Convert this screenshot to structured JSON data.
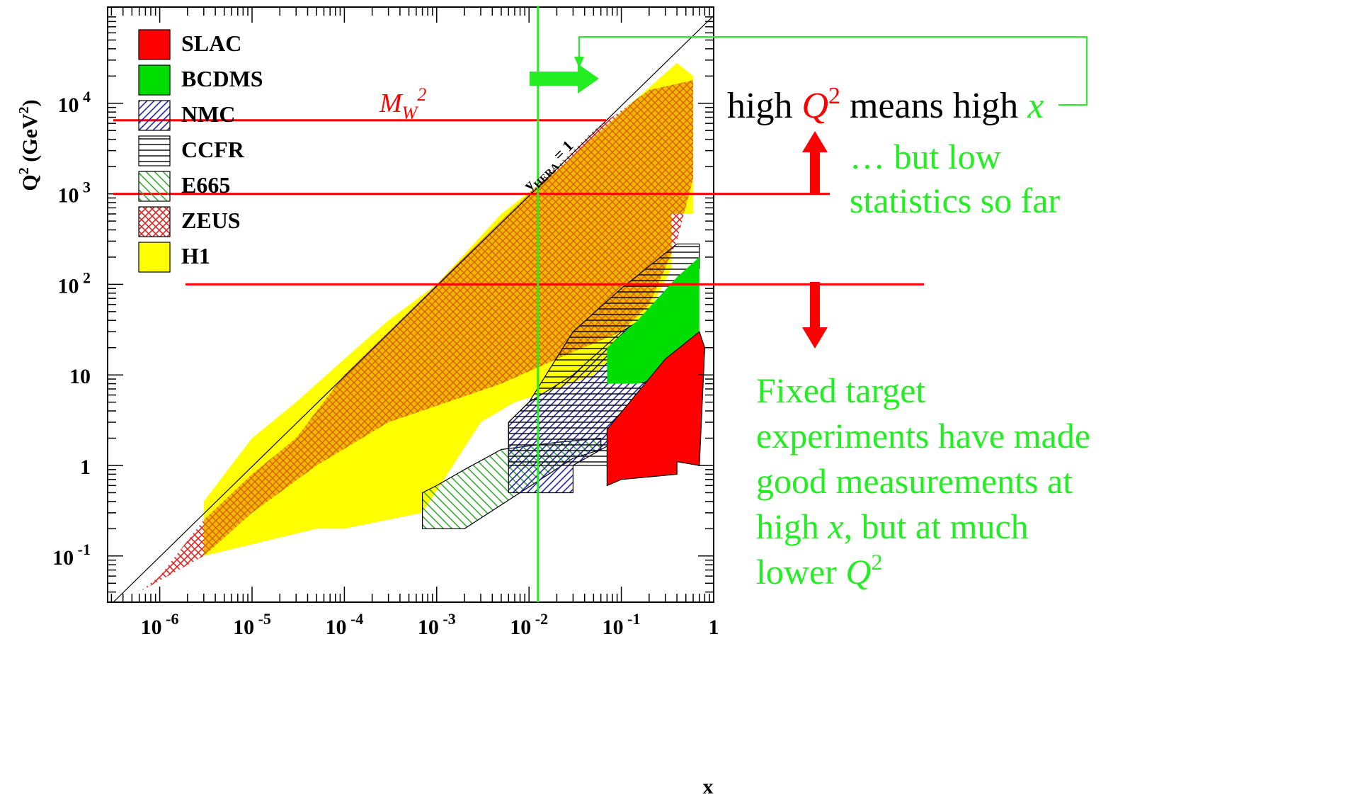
{
  "chart_data": {
    "type": "area",
    "xlabel": "x",
    "ylabel": "Q² (GeV²)",
    "x_scale": "log",
    "y_scale": "log",
    "x_ticks": [
      {
        "value": 1e-06,
        "base": "10",
        "exp": "-6"
      },
      {
        "value": 1e-05,
        "base": "10",
        "exp": "-5"
      },
      {
        "value": 0.0001,
        "base": "10",
        "exp": "-4"
      },
      {
        "value": 0.001,
        "base": "10",
        "exp": "-3"
      },
      {
        "value": 0.01,
        "base": "10",
        "exp": "-2"
      },
      {
        "value": 0.1,
        "base": "10",
        "exp": "-1"
      },
      {
        "value": 1,
        "base": "1",
        "exp": ""
      }
    ],
    "y_ticks": [
      {
        "value": 0.1,
        "base": "10",
        "exp": "-1"
      },
      {
        "value": 1,
        "base": "1",
        "exp": ""
      },
      {
        "value": 10,
        "base": "10",
        "exp": ""
      },
      {
        "value": 100,
        "base": "10",
        "exp": "2"
      },
      {
        "value": 1000,
        "base": "10",
        "exp": "3"
      },
      {
        "value": 10000,
        "base": "10",
        "exp": "4"
      }
    ],
    "xlim": [
      3e-07,
      1.2
    ],
    "ylim": [
      0.03,
      90000
    ],
    "legend": [
      {
        "name": "SLAC",
        "color": "#ff0000",
        "style": "solid"
      },
      {
        "name": "BCDMS",
        "color": "#00dd00",
        "style": "solid"
      },
      {
        "name": "NMC",
        "color": "#2222aa",
        "style": "diag"
      },
      {
        "name": "CCFR",
        "color": "#000000",
        "style": "horiz"
      },
      {
        "name": "E665",
        "color": "#22aa22",
        "style": "diag-back"
      },
      {
        "name": "ZEUS",
        "color": "#dd2222",
        "style": "cross"
      },
      {
        "name": "H1",
        "color": "#ffff00",
        "style": "solid"
      }
    ],
    "regions": [
      {
        "name": "H1",
        "points": [
          [
            3e-06,
            0.1
          ],
          [
            5e-05,
            0.2
          ],
          [
            0.0001,
            0.2
          ],
          [
            0.0007,
            0.3
          ],
          [
            0.0015,
            1
          ],
          [
            0.003,
            3
          ],
          [
            0.007,
            5
          ],
          [
            0.02,
            7
          ],
          [
            0.05,
            10
          ],
          [
            0.1,
            20
          ],
          [
            0.2,
            50
          ],
          [
            0.35,
            150
          ],
          [
            0.35,
            600
          ],
          [
            0.6,
            600
          ],
          [
            0.6,
            20000
          ],
          [
            0.4,
            28000
          ],
          [
            0.1,
            8000
          ],
          [
            0.02,
            1800
          ],
          [
            0.005,
            600
          ],
          [
            0.001,
            100
          ],
          [
            0.0003,
            40
          ],
          [
            0.0001,
            15
          ],
          [
            3e-05,
            5
          ],
          [
            1e-05,
            2
          ],
          [
            3e-06,
            0.4
          ]
        ]
      },
      {
        "name": "ZEUS",
        "points": [
          [
            6e-07,
            0.04
          ],
          [
            3e-06,
            0.1
          ],
          [
            1e-05,
            0.3
          ],
          [
            5e-05,
            1
          ],
          [
            0.0003,
            3
          ],
          [
            0.005,
            8
          ],
          [
            0.03,
            18
          ],
          [
            0.1,
            30
          ],
          [
            0.2,
            60
          ],
          [
            0.4,
            300
          ],
          [
            0.6,
            1500
          ],
          [
            0.6,
            18000
          ],
          [
            0.2,
            14000
          ],
          [
            0.05,
            5000
          ],
          [
            0.01,
            1000
          ],
          [
            0.003,
            300
          ],
          [
            0.001,
            100
          ],
          [
            0.0003,
            30
          ],
          [
            0.0001,
            10
          ],
          [
            3e-05,
            2
          ],
          [
            1e-05,
            0.8
          ],
          [
            3e-06,
            0.25
          ],
          [
            1e-06,
            0.06
          ]
        ]
      },
      {
        "name": "E665",
        "points": [
          [
            0.0007,
            0.2
          ],
          [
            0.002,
            0.2
          ],
          [
            0.03,
            1.2
          ],
          [
            0.06,
            1.5
          ],
          [
            0.06,
            2
          ],
          [
            0.02,
            1.8
          ],
          [
            0.005,
            1.5
          ],
          [
            0.002,
            0.9
          ],
          [
            0.001,
            0.6
          ],
          [
            0.0007,
            0.5
          ]
        ]
      },
      {
        "name": "NMC",
        "points": [
          [
            0.006,
            0.5
          ],
          [
            0.03,
            0.5
          ],
          [
            0.03,
            1
          ],
          [
            0.2,
            3
          ],
          [
            0.4,
            6
          ],
          [
            0.5,
            30
          ],
          [
            0.5,
            80
          ],
          [
            0.4,
            70
          ],
          [
            0.1,
            30
          ],
          [
            0.03,
            10
          ],
          [
            0.01,
            5
          ],
          [
            0.006,
            3
          ]
        ]
      },
      {
        "name": "CCFR",
        "points": [
          [
            0.006,
            1
          ],
          [
            0.1,
            1
          ],
          [
            0.2,
            3
          ],
          [
            0.5,
            100
          ],
          [
            0.7,
            150
          ],
          [
            0.7,
            280
          ],
          [
            0.4,
            280
          ],
          [
            0.1,
            90
          ],
          [
            0.03,
            30
          ],
          [
            0.01,
            5
          ],
          [
            0.006,
            3
          ]
        ]
      },
      {
        "name": "BCDMS",
        "points": [
          [
            0.07,
            8
          ],
          [
            0.15,
            8
          ],
          [
            0.3,
            10
          ],
          [
            0.7,
            25
          ],
          [
            0.7,
            200
          ],
          [
            0.4,
            120
          ],
          [
            0.15,
            40
          ],
          [
            0.07,
            20
          ]
        ]
      },
      {
        "name": "SLAC",
        "points": [
          [
            0.07,
            0.6
          ],
          [
            0.1,
            0.7
          ],
          [
            0.4,
            0.8
          ],
          [
            0.4,
            1.1
          ],
          [
            0.7,
            1
          ],
          [
            0.8,
            20
          ],
          [
            0.7,
            30
          ],
          [
            0.3,
            15
          ],
          [
            0.07,
            2.5
          ]
        ]
      }
    ],
    "lines": [
      {
        "name": "M_W²",
        "orientation": "horizontal",
        "value": 6500
      },
      {
        "name": "",
        "orientation": "horizontal",
        "value": 1000
      },
      {
        "name": "",
        "orientation": "horizontal",
        "value": 100
      },
      {
        "name": "",
        "orientation": "vertical",
        "value": 0.0125
      },
      {
        "name": "y_HERA = 1",
        "orientation": "diagonal"
      }
    ]
  },
  "legend_labels": [
    "SLAC",
    "BCDMS",
    "NMC",
    "CCFR",
    "E665",
    "ZEUS",
    "H1"
  ],
  "annotations": {
    "mw_label_base": "M",
    "mw_label_sub": "W",
    "mw_label_sup": "2",
    "yhera_label": "y",
    "yhera_sub": "HERA",
    "yhera_rest": " = 1",
    "high_q2_line": {
      "part1": "high ",
      "q": "Q",
      "q_sup": "2",
      "part2": " means high ",
      "x": "x"
    },
    "low_stats": [
      "… but low",
      "statistics so far"
    ],
    "fixed_target": {
      "line1": "Fixed target",
      "line2": "experiments have made",
      "line3": "good measurements at",
      "line4_a": "high ",
      "line4_x": "x",
      "line4_b": ", but at much",
      "line5_a": "lower ",
      "line5_q": "Q",
      "line5_sup": "2"
    }
  },
  "axis_title": {
    "y_q": "Q",
    "y_sup": "2",
    "y_unit": " (GeV",
    "y_unit_sup": "2",
    "y_close": ")",
    "x": "x"
  },
  "colors": {
    "red": "#ff0000",
    "green": "#22ee22",
    "yellow": "#ffff00",
    "zeus": "#dd3333",
    "bcdms": "#00dd00"
  }
}
